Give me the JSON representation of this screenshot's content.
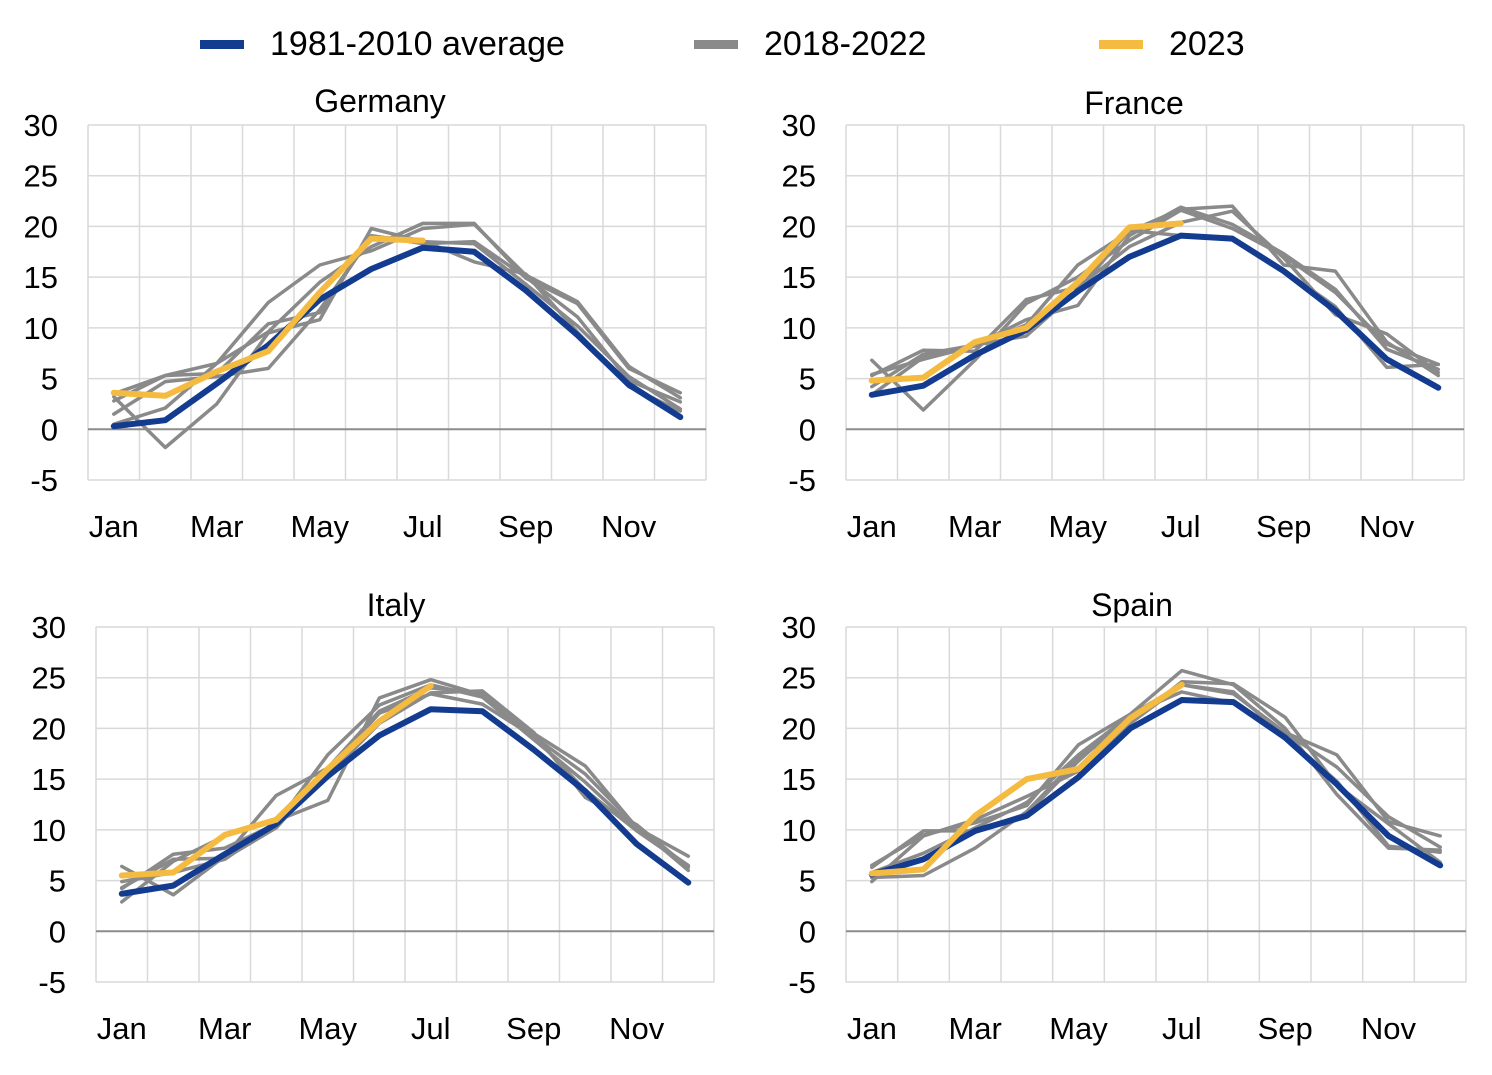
{
  "legend": [
    {
      "label": "1981-2010 average",
      "color": "#133b8f"
    },
    {
      "label": "2018-2022",
      "color": "#8a8a8a"
    },
    {
      "label": "2023",
      "color": "#f4bb40"
    }
  ],
  "chart_data": [
    {
      "type": "line",
      "title": "Germany",
      "categories": [
        "Jan",
        "Feb",
        "Mar",
        "Apr",
        "May",
        "Jun",
        "Jul",
        "Aug",
        "Sep",
        "Oct",
        "Nov",
        "Dec"
      ],
      "tick_labels": [
        "Jan",
        "Mar",
        "May",
        "Jul",
        "Sep",
        "Nov"
      ],
      "ylim": [
        -5,
        30
      ],
      "yticks": [
        30,
        25,
        20,
        15,
        10,
        5,
        0,
        -5
      ],
      "average": [
        0.3,
        0.9,
        4.5,
        8.3,
        12.8,
        15.8,
        17.9,
        17.5,
        13.7,
        9.3,
        4.4,
        1.2
      ],
      "years": [
        [
          0.5,
          2.1,
          6.5,
          12.5,
          16.2,
          17.6,
          19.8,
          20.2,
          15.2,
          12.6,
          6.2,
          3.1
        ],
        [
          3.2,
          -1.8,
          2.5,
          9.5,
          10.8,
          19.8,
          18.5,
          18.3,
          14.3,
          10.2,
          5.2,
          2.0
        ],
        [
          3.5,
          5.3,
          5.5,
          10.4,
          11.5,
          19.1,
          18.3,
          18.5,
          15.0,
          11.1,
          4.8,
          2.7
        ],
        [
          1.5,
          4.7,
          5.2,
          6.0,
          11.8,
          19.0,
          18.6,
          16.5,
          15.3,
          9.6,
          4.2,
          1.8
        ],
        [
          2.8,
          5.3,
          6.5,
          9.6,
          14.5,
          18.0,
          20.3,
          20.3,
          14.9,
          12.4,
          6.0,
          3.6
        ]
      ],
      "current": [
        3.6,
        3.3,
        5.7,
        7.7,
        13.5,
        18.8,
        18.6
      ]
    },
    {
      "type": "line",
      "title": "France",
      "categories": [
        "Jan",
        "Feb",
        "Mar",
        "Apr",
        "May",
        "Jun",
        "Jul",
        "Aug",
        "Sep",
        "Oct",
        "Nov",
        "Dec"
      ],
      "tick_labels": [
        "Jan",
        "Mar",
        "May",
        "Jul",
        "Sep",
        "Nov"
      ],
      "ylim": [
        -5,
        30
      ],
      "yticks": [
        30,
        25,
        20,
        15,
        10,
        5,
        0,
        -5
      ],
      "average": [
        3.4,
        4.3,
        7.3,
        9.8,
        13.6,
        17.0,
        19.1,
        18.8,
        15.6,
        11.7,
        6.9,
        4.1
      ],
      "years": [
        [
          6.8,
          1.9,
          6.8,
          12.4,
          15.0,
          18.6,
          21.6,
          19.8,
          17.1,
          13.5,
          8.4,
          6.4
        ],
        [
          3.4,
          7.1,
          8.3,
          10.8,
          12.2,
          19.1,
          21.9,
          20.2,
          17.3,
          13.8,
          7.9,
          5.9
        ],
        [
          5.3,
          7.8,
          7.7,
          12.8,
          14.0,
          18.0,
          20.4,
          21.5,
          16.9,
          11.3,
          9.4,
          5.6
        ],
        [
          4.2,
          7.4,
          8.3,
          9.2,
          13.7,
          19.6,
          19.1,
          18.8,
          15.7,
          12.1,
          6.1,
          6.4
        ],
        [
          5.4,
          6.9,
          8.2,
          10.3,
          16.2,
          19.5,
          21.7,
          22.0,
          16.2,
          15.6,
          8.6,
          5.3
        ]
      ],
      "current": [
        4.8,
        5.1,
        8.6,
        10.0,
        14.5,
        19.9,
        20.3
      ]
    },
    {
      "type": "line",
      "title": "Italy",
      "categories": [
        "Jan",
        "Feb",
        "Mar",
        "Apr",
        "May",
        "Jun",
        "Jul",
        "Aug",
        "Sep",
        "Oct",
        "Nov",
        "Dec"
      ],
      "tick_labels": [
        "Jan",
        "Mar",
        "May",
        "Jul",
        "Sep",
        "Nov"
      ],
      "ylim": [
        -5,
        30
      ],
      "yticks": [
        30,
        25,
        20,
        15,
        10,
        5,
        0,
        -5
      ],
      "average": [
        3.7,
        4.5,
        7.6,
        10.6,
        15.3,
        19.3,
        21.9,
        21.7,
        17.9,
        13.8,
        8.6,
        4.8
      ],
      "years": [
        [
          6.4,
          3.6,
          7.4,
          13.4,
          16.1,
          21.7,
          24.0,
          23.5,
          19.2,
          15.5,
          10.3,
          6.0
        ],
        [
          2.9,
          6.9,
          9.4,
          10.9,
          12.9,
          23.0,
          24.8,
          23.3,
          19.5,
          16.3,
          10.2,
          7.4
        ],
        [
          4.2,
          7.6,
          8.2,
          10.6,
          15.3,
          20.5,
          23.5,
          23.7,
          19.6,
          13.2,
          10.5,
          6.3
        ],
        [
          4.3,
          7.1,
          7.2,
          10.2,
          15.9,
          21.5,
          23.4,
          22.4,
          19.2,
          13.9,
          9.9,
          6.4
        ],
        [
          4.9,
          5.8,
          7.1,
          10.6,
          17.4,
          22.3,
          24.3,
          23.1,
          18.9,
          14.7,
          10.0,
          6.5
        ]
      ],
      "current": [
        5.5,
        5.8,
        9.5,
        11.0,
        16.0,
        20.7,
        24.2
      ]
    },
    {
      "type": "line",
      "title": "Spain",
      "categories": [
        "Jan",
        "Feb",
        "Mar",
        "Apr",
        "May",
        "Jun",
        "Jul",
        "Aug",
        "Sep",
        "Oct",
        "Nov",
        "Dec"
      ],
      "tick_labels": [
        "Jan",
        "Mar",
        "May",
        "Jul",
        "Sep",
        "Nov"
      ],
      "ylim": [
        -5,
        30
      ],
      "yticks": [
        30,
        25,
        20,
        15,
        10,
        5,
        0,
        -5
      ],
      "average": [
        5.6,
        7.1,
        9.9,
        11.4,
        15.2,
        20.0,
        22.8,
        22.6,
        19.1,
        14.5,
        9.4,
        6.5
      ],
      "years": [
        [
          6.5,
          9.5,
          10.7,
          12.4,
          18.4,
          21.4,
          25.7,
          24.3,
          20.0,
          13.5,
          8.2,
          8.0
        ],
        [
          5.3,
          5.5,
          8.2,
          11.8,
          17.1,
          20.5,
          24.3,
          23.4,
          19.6,
          17.4,
          10.8,
          9.4
        ],
        [
          4.9,
          9.4,
          11.0,
          13.3,
          15.8,
          20.6,
          24.6,
          24.4,
          21.1,
          14.4,
          10.6,
          6.8
        ],
        [
          6.3,
          9.9,
          9.9,
          11.6,
          16.8,
          21.4,
          23.6,
          22.5,
          19.6,
          16.2,
          11.3,
          8.3
        ],
        [
          5.8,
          7.7,
          10.2,
          12.7,
          17.4,
          21.3,
          24.3,
          23.6,
          19.2,
          14.8,
          8.4,
          7.8
        ]
      ],
      "current": [
        5.7,
        6.1,
        11.4,
        15.0,
        16.0,
        21.0,
        24.3
      ]
    }
  ]
}
